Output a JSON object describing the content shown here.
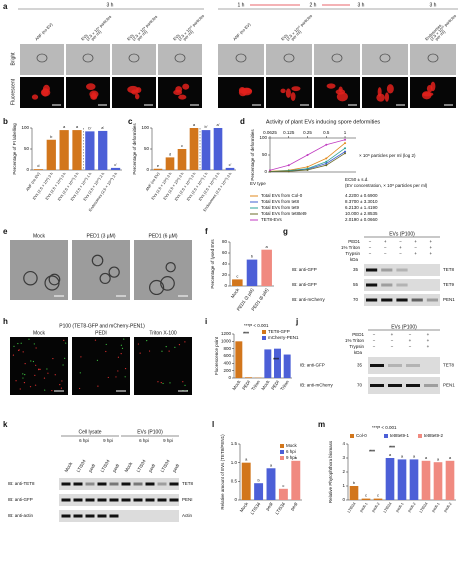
{
  "panel_letters": [
    "a",
    "b",
    "c",
    "d",
    "e",
    "f",
    "g",
    "h",
    "i",
    "j",
    "k",
    "l",
    "m"
  ],
  "a": {
    "left_time": "3 h",
    "right_times": [
      "1 h",
      "2 h",
      "3 h",
      "3 h"
    ],
    "left_columns": [
      [
        "ANF (no EV)"
      ],
      [
        "EVs",
        "(2.5 × 10⁸ particles",
        "per ml)"
      ],
      [
        "EVs",
        "(2.5 × 10⁹ particles",
        "per ml)"
      ],
      [
        "EVs",
        "(2.5 × 10¹⁰ particles",
        "per ml)"
      ]
    ],
    "right_columns": [
      [
        "ANF (no EV)"
      ],
      [
        "EVs",
        "(2.5 × 10¹⁰ particles",
        "per ml)"
      ],
      [
        "Endosomes",
        "(2.5 × 10¹⁰ particles",
        "per ml)"
      ]
    ],
    "rows": [
      "Bright",
      "Fluorescent"
    ]
  },
  "e": {
    "columns": [
      "Mock",
      "PED1 (3 µM)",
      "PED1 (6 µM)"
    ]
  },
  "g": {
    "header": "EVs (P100)",
    "conditions": [
      "PED1",
      "1% Triton",
      "Trypsin"
    ],
    "signs": [
      [
        "−",
        "+",
        "−",
        "+",
        "+"
      ],
      [
        "−",
        "−",
        "+",
        "−",
        "+"
      ],
      [
        "−",
        "−",
        "−",
        "+",
        "+"
      ]
    ],
    "kda": "kDa",
    "blots": [
      {
        "antibody": "IB: anti-GFP",
        "marker": 35,
        "protein": "TET8"
      },
      {
        "antibody": "IB: anti-GFP",
        "marker": 55,
        "protein": "TET9"
      },
      {
        "antibody": "IB: anti-mCherry",
        "marker": 70,
        "protein": "PEN1"
      }
    ]
  },
  "h": {
    "title": "P100 (TET8-GFP and mCherry-PEN1)",
    "columns": [
      "Mock",
      "PEDI",
      "Triton X-100"
    ]
  },
  "j": {
    "header": "EVs (P100)",
    "conditions": [
      "PED1",
      "1% Triton",
      "Trypsin"
    ],
    "signs": [
      [
        "−",
        "+",
        "−",
        "+"
      ],
      [
        "−",
        "−",
        "+",
        "+"
      ],
      [
        "−",
        "−",
        "−",
        "+"
      ]
    ],
    "kda": "kDa",
    "blots": [
      {
        "antibody": "IB: anti-GFP",
        "marker": 35,
        "protein": "TET8"
      },
      {
        "antibody": "IB: anti-mCherry",
        "marker": 70,
        "protein": "PEN1"
      }
    ]
  },
  "k": {
    "groups": [
      "Cell lysate",
      "EVs (P100)"
    ],
    "times": [
      "6 hpi",
      "9 hpi",
      "6 hpi",
      "9 hpi"
    ],
    "lanes": [
      "Mock",
      "LTI534",
      "pedI",
      "LTI534",
      "pedI",
      "Mock",
      "LTI534",
      "pedI",
      "LTI534",
      "pedI"
    ],
    "blots": [
      {
        "antibody": "IB: anti-TET8",
        "protein": "TET8"
      },
      {
        "antibody": "IB: anti-GFP",
        "protein": "PENI"
      },
      {
        "antibody": "IB: anti-actin",
        "protein": "Actin"
      }
    ]
  },
  "chart_data": [
    {
      "type": "bar",
      "y_label": "Percentage of PI labelling",
      "categories": [
        "ANF (no EV)",
        "EVs (2.5 × 10⁸) 3 h",
        "EVs (2.5 × 10⁹) 3 h",
        "EVs (2.5 × 10¹⁰) 3 h",
        "EVs (2.5 × 10¹⁰) 1 h",
        "EVs (2.5 × 10¹⁰) 2 h",
        "Endosomes (2.5 × 10¹⁰) 3 h"
      ],
      "values": [
        2,
        72,
        95,
        95,
        92,
        93,
        5
      ],
      "colors": [
        "#d2761c",
        "#d2761c",
        "#d2761c",
        "#d2761c",
        "#4c5fd7",
        "#4c5fd7",
        "#4c5fd7"
      ],
      "letters": [
        "d",
        "b",
        "a",
        "a",
        "b'",
        "a'",
        "c'"
      ],
      "ylim": [
        0,
        100
      ],
      "yticks": [
        0,
        50,
        100
      ]
    },
    {
      "type": "bar",
      "y_label": "Percentage of deformities",
      "categories": [
        "ANF (no EV)",
        "EVs (2.5 × 10⁸) 3 h",
        "EVs (2.5 × 10⁹) 3 h",
        "EVs (2.5 × 10¹⁰) 3 h",
        "EVs (2.5 × 10¹⁰) 1 h",
        "EVs (2.5 × 10¹⁰) 2 h",
        "Endosomes (2.5 × 10¹⁰) 3 h"
      ],
      "values": [
        3,
        30,
        50,
        100,
        95,
        100,
        5
      ],
      "colors": [
        "#d2761c",
        "#d2761c",
        "#d2761c",
        "#d2761c",
        "#4c5fd7",
        "#4c5fd7",
        "#4c5fd7"
      ],
      "letters": [
        "e",
        "d",
        "c",
        "a",
        "b'",
        "a'",
        "c'"
      ],
      "ylim": [
        0,
        100
      ],
      "yticks": [
        0,
        50,
        100
      ]
    },
    {
      "type": "line",
      "title": "Activity of plant EVs inducing spore deformities",
      "y_label": "Percentage of deformities",
      "x_label": "× 10⁸ particles per ml (log 2)",
      "xscale": "log2",
      "x": [
        0.0625,
        0.125,
        0.25,
        0.5,
        1
      ],
      "xlim": [
        0.0625,
        1.5
      ],
      "xticks": [
        0.0625,
        0.125,
        0.25,
        0.5,
        1
      ],
      "ylim": [
        0,
        100
      ],
      "yticks": [
        0,
        50,
        100
      ],
      "legend_title": "EV type",
      "ec50_header": [
        "EC50 ± s.d.",
        "(EV concentration, × 10⁸ particles per ml)"
      ],
      "series": [
        {
          "name": "Total EVs from Col-0",
          "color": "#e08a1e",
          "ec50": "4.2200 ± 0.6900",
          "values": [
            2,
            5,
            15,
            40,
            85
          ]
        },
        {
          "name": "Total EVs from tet8",
          "color": "#3f5fd0",
          "ec50": "8.3700 ± 3.3010",
          "values": [
            1,
            3,
            8,
            25,
            60
          ]
        },
        {
          "name": "Total EVs from tet9",
          "color": "#2aa198",
          "ec50": "6.2130 ± 1.4190",
          "values": [
            1,
            4,
            10,
            30,
            70
          ]
        },
        {
          "name": "Total EVs from tet8tet9",
          "color": "#6b6b2a",
          "ec50": "10.000 ± 2.8535",
          "values": [
            1,
            2,
            6,
            20,
            55
          ]
        },
        {
          "name": "TET8-EVs",
          "color": "#c03ac0",
          "ec50": "2.0190 ± 0.0660",
          "values": [
            5,
            20,
            50,
            80,
            95
          ]
        }
      ]
    },
    {
      "type": "bar",
      "y_label": "Percentage of lysed EVs",
      "categories": [
        "Mock",
        "PED1 (3 µM)",
        "PED1 (6 µM)"
      ],
      "values": [
        12,
        48,
        66
      ],
      "colors": [
        "#d2761c",
        "#4c5fd7",
        "#f08a80"
      ],
      "letters": [
        "c",
        "b",
        "a"
      ],
      "ylim": [
        0,
        80
      ],
      "yticks": [
        0,
        20,
        40,
        60,
        80
      ]
    },
    {
      "type": "bar",
      "y_label": "Fluorescence point",
      "note": "***P < 0.001",
      "annotations": [
        "***",
        "***"
      ],
      "categories": [
        "Mock",
        "PEDI",
        "Triton",
        "Mock",
        "PEDI",
        "Triton"
      ],
      "series": [
        {
          "name": "TET8-GFP",
          "color": "#d2761c",
          "values": [
            1000,
            20,
            10,
            null,
            null,
            null
          ]
        },
        {
          "name": "mCherry-PEN1",
          "color": "#4c5fd7",
          "values": [
            null,
            null,
            null,
            780,
            800,
            640
          ]
        }
      ],
      "ylim": [
        0,
        1200
      ],
      "yticks": [
        0,
        200,
        400,
        600,
        800,
        1000,
        1200
      ]
    },
    {
      "type": "bar",
      "y_label": "Relative amount of EVs (TET8/PEN1)",
      "categories": [
        "Mock",
        "LTI534",
        "pedI",
        "LTI534",
        "pedI"
      ],
      "series": [
        {
          "name": "Mock",
          "color": "#d2761c",
          "values": [
            1.0,
            null,
            null,
            null,
            null
          ],
          "letters": [
            "a",
            null,
            null,
            null,
            null
          ]
        },
        {
          "name": "6 hpi",
          "color": "#4c5fd7",
          "values": [
            null,
            0.45,
            0.85,
            null,
            null
          ],
          "letters": [
            null,
            "b",
            "a",
            null,
            null
          ]
        },
        {
          "name": "9 hpi",
          "color": "#f08a80",
          "values": [
            null,
            null,
            null,
            0.3,
            1.05
          ],
          "letters": [
            null,
            null,
            null,
            "c",
            "a"
          ]
        }
      ],
      "ylim": [
        0,
        1.5
      ],
      "yticks": [
        0,
        0.5,
        {
          "value": 1,
          "label": "1.0"
        },
        1.5
      ]
    },
    {
      "type": "bar",
      "y_label": "Relative Phytophthora biomass",
      "note": "***P < 0.001",
      "annotations": [
        "***",
        "***"
      ],
      "categories": [
        "LTI534",
        "pedI-1",
        "pedI-2",
        "LTI534",
        "pedI-1",
        "pedI-2",
        "LTI534",
        "pedI-1",
        "pedI-2"
      ],
      "series": [
        {
          "name": "Col-0",
          "color": "#d2761c",
          "values": [
            1.0,
            0.1,
            0.1,
            null,
            null,
            null,
            null,
            null,
            null
          ],
          "letters": [
            "b",
            "c",
            "c",
            null,
            null,
            null,
            null,
            null,
            null
          ]
        },
        {
          "name": "tet8tet9-1",
          "color": "#4c5fd7",
          "values": [
            null,
            null,
            null,
            3.0,
            2.9,
            2.9,
            null,
            null,
            null
          ],
          "letters": [
            null,
            null,
            null,
            "a",
            "a",
            "a",
            null,
            null,
            null
          ]
        },
        {
          "name": "tet8tet9-2",
          "color": "#f08a80",
          "values": [
            null,
            null,
            null,
            null,
            null,
            null,
            2.8,
            2.7,
            2.8
          ],
          "letters": [
            null,
            null,
            null,
            null,
            null,
            null,
            "a",
            "a",
            "a"
          ]
        }
      ],
      "ylim": [
        0,
        4
      ],
      "yticks": [
        0,
        1,
        2,
        3,
        4
      ]
    }
  ]
}
